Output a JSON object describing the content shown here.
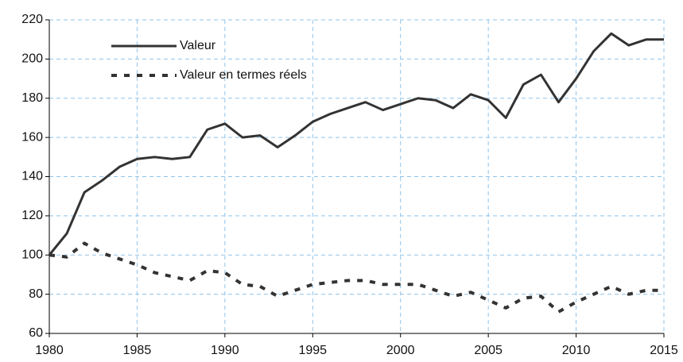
{
  "chart_data": {
    "type": "line",
    "x": [
      1980,
      1981,
      1982,
      1983,
      1984,
      1985,
      1986,
      1987,
      1988,
      1989,
      1990,
      1991,
      1992,
      1993,
      1994,
      1995,
      1996,
      1997,
      1998,
      1999,
      2000,
      2001,
      2002,
      2003,
      2004,
      2005,
      2006,
      2007,
      2008,
      2009,
      2010,
      2011,
      2012,
      2013,
      2014,
      2015
    ],
    "series": [
      {
        "name": "Valeur",
        "color": "#333333",
        "style": "solid",
        "values": [
          100,
          111,
          132,
          138,
          145,
          149,
          150,
          149,
          150,
          164,
          167,
          160,
          161,
          155,
          161,
          168,
          172,
          175,
          178,
          174,
          177,
          180,
          179,
          175,
          182,
          179,
          170,
          187,
          192,
          178,
          190,
          204,
          213,
          207,
          210,
          210
        ]
      },
      {
        "name": "Valeur en termes réels",
        "color": "#333333",
        "style": "dashed",
        "values": [
          100,
          99,
          106,
          101,
          98,
          95,
          91,
          89,
          87,
          92,
          91,
          85,
          84,
          79,
          82,
          85,
          86,
          87,
          87,
          85,
          85,
          85,
          82,
          79,
          81,
          77,
          73,
          78,
          79,
          71,
          76,
          80,
          84,
          80,
          82,
          82
        ]
      }
    ],
    "xlim": [
      1980,
      2015
    ],
    "xticks": [
      1980,
      1985,
      1990,
      1995,
      2000,
      2005,
      2010,
      2015
    ],
    "ylim": [
      60,
      220
    ],
    "yticks": [
      60,
      80,
      100,
      120,
      140,
      160,
      180,
      200,
      220
    ],
    "grid": true,
    "legend": "upper left"
  }
}
